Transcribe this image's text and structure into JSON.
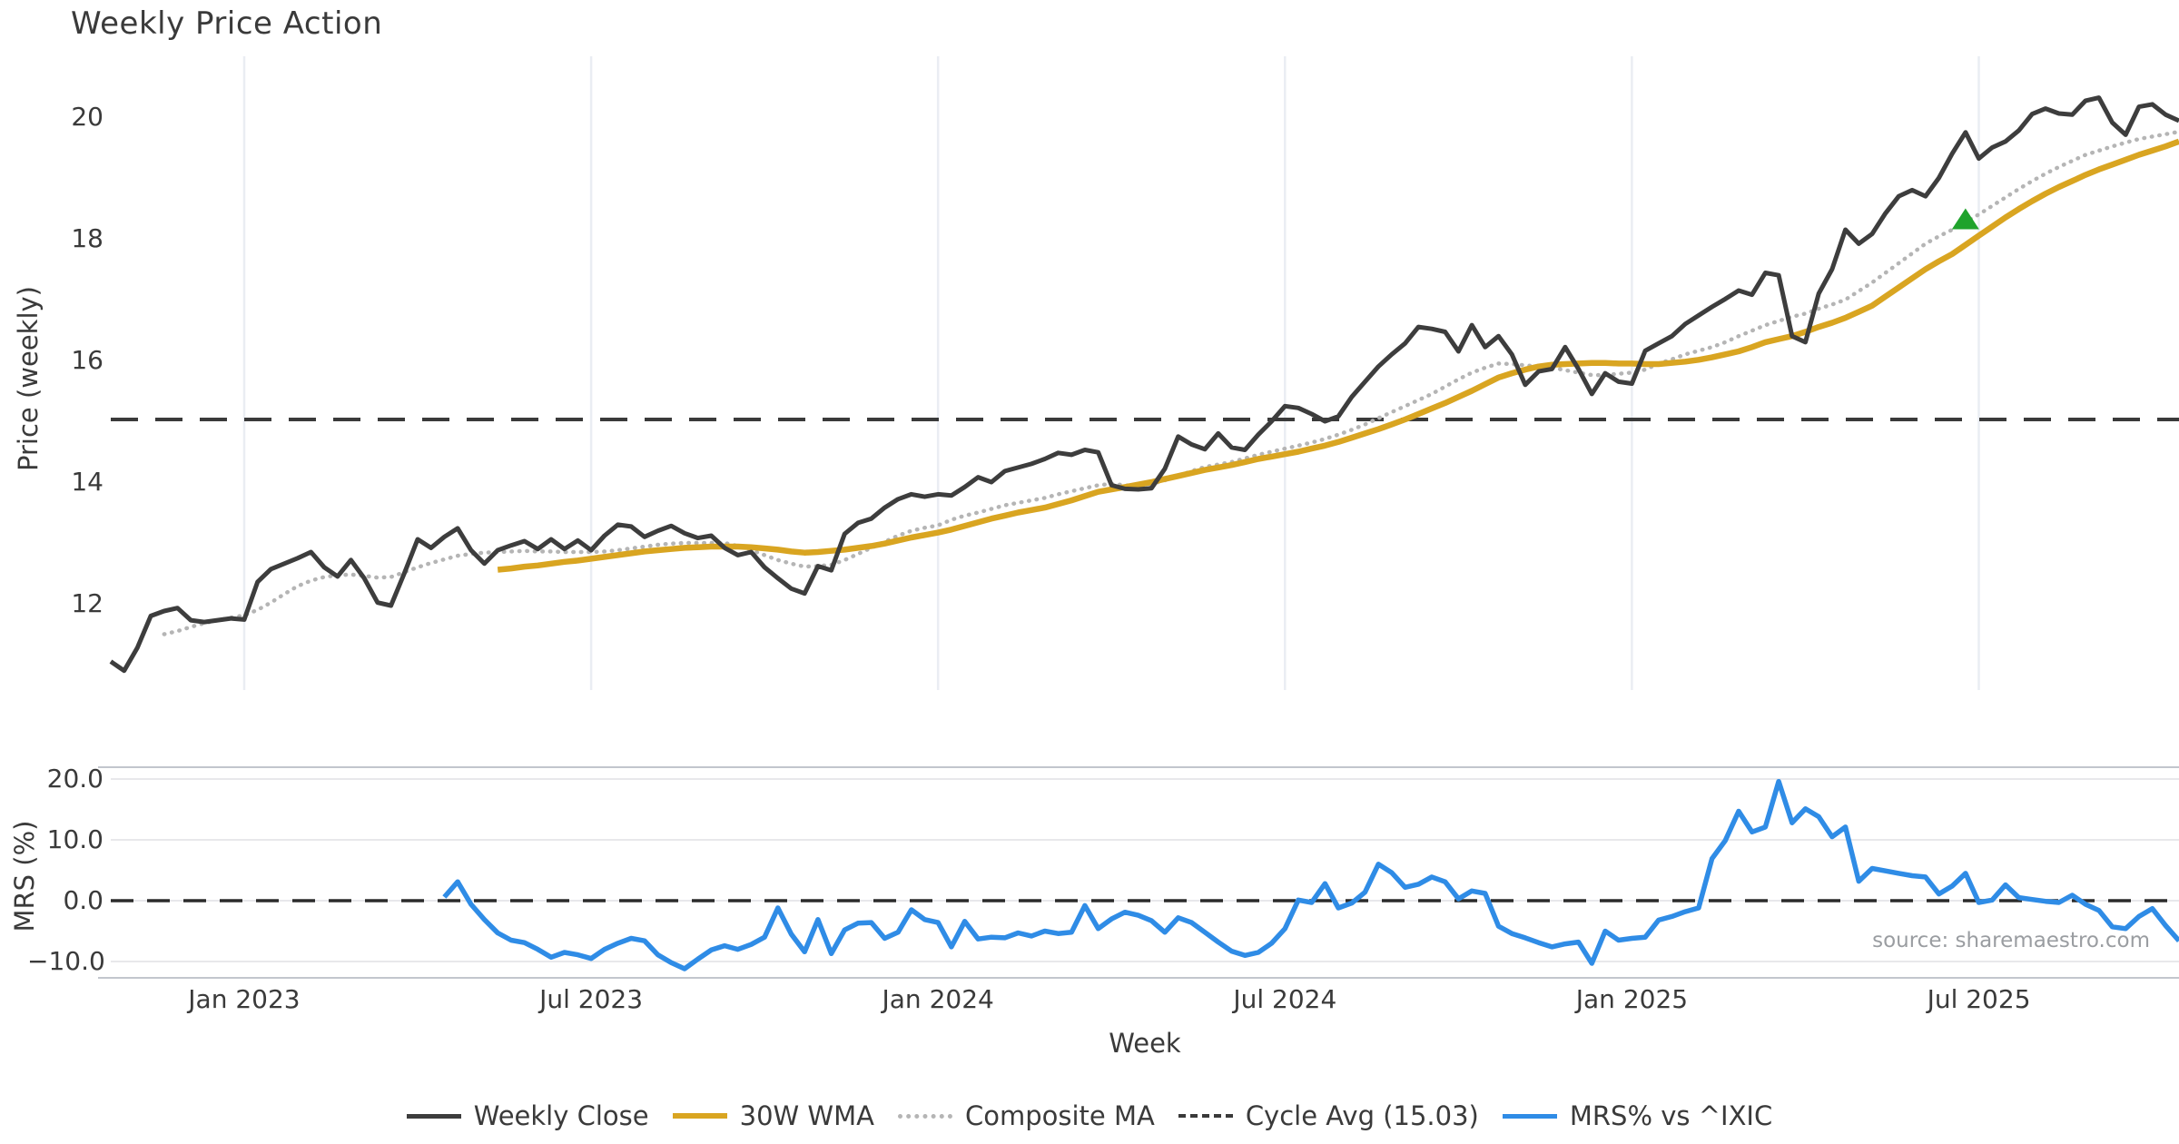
{
  "title": "Weekly Price Action",
  "source_note": "source: sharemaestro.com",
  "colors": {
    "weekly_close": "#3d3d3d",
    "wma_30w": "#d9a521",
    "composite_ma": "#b5b5b5",
    "cycle_avg": "#3a3a3a",
    "mrs_line": "#2f8ce6",
    "signal_marker": "#1fa32c",
    "vertical_grid": "#eaedf3",
    "horizontal_grid": "#e8e8eb",
    "spine": "#c2c6cd",
    "text": "#3a3a3a",
    "source_text": "#9a9da1"
  },
  "legend": {
    "items": [
      {
        "label": "Weekly Close",
        "color": "#3d3d3d",
        "style": "solid"
      },
      {
        "label": "30W WMA",
        "color": "#d9a521",
        "style": "solid"
      },
      {
        "label": "Composite MA",
        "color": "#b5b5b5",
        "style": "dotted"
      },
      {
        "label": "Cycle Avg (15.03)",
        "color": "#3a3a3a",
        "style": "dashed"
      },
      {
        "label": "MRS% vs ^IXIC",
        "color": "#2f8ce6",
        "style": "solid"
      }
    ]
  },
  "chart_data": [
    {
      "type": "line",
      "title": "Weekly Price Action",
      "ylabel": "Price (weekly)",
      "xlabel": "",
      "grid": "vertical-only",
      "ylim": [
        10.5,
        21.1
      ],
      "yticks": [
        20,
        18,
        16,
        14,
        12
      ],
      "n_points": 156,
      "x_ticks": [
        {
          "index": 10,
          "label": "Jan 2023"
        },
        {
          "index": 36,
          "label": "Jul 2023"
        },
        {
          "index": 62,
          "label": "Jan 2024"
        },
        {
          "index": 88,
          "label": "Jul 2024"
        },
        {
          "index": 114,
          "label": "Jan 2025"
        },
        {
          "index": 140,
          "label": "Jul 2025"
        }
      ],
      "cycle_avg": 15.03,
      "signal_marker": {
        "shape": "triangle-up",
        "color": "#1fa32c",
        "index": 139,
        "value": 18.32
      },
      "series": [
        {
          "name": "Weekly Close",
          "color": "#3d3d3d",
          "style": "solid",
          "width": 5,
          "values": [
            11.05,
            10.9,
            11.28,
            11.8,
            11.88,
            11.93,
            11.73,
            11.7,
            11.73,
            11.76,
            11.74,
            12.36,
            12.57,
            12.66,
            12.75,
            12.85,
            12.6,
            12.45,
            12.72,
            12.42,
            12.02,
            11.97,
            12.5,
            13.06,
            12.92,
            13.1,
            13.24,
            12.88,
            12.66,
            12.88,
            12.96,
            13.03,
            12.9,
            13.06,
            12.9,
            13.04,
            12.88,
            13.12,
            13.3,
            13.27,
            13.1,
            13.2,
            13.28,
            13.16,
            13.08,
            13.12,
            12.92,
            12.8,
            12.85,
            12.6,
            12.42,
            12.25,
            12.17,
            12.62,
            12.55,
            13.15,
            13.33,
            13.4,
            13.58,
            13.72,
            13.8,
            13.76,
            13.8,
            13.78,
            13.92,
            14.08,
            14.0,
            14.18,
            14.24,
            14.3,
            14.38,
            14.48,
            14.45,
            14.53,
            14.49,
            13.95,
            13.89,
            13.88,
            13.9,
            14.22,
            14.75,
            14.62,
            14.54,
            14.8,
            14.57,
            14.53,
            14.78,
            15.0,
            15.25,
            15.22,
            15.12,
            15.0,
            15.08,
            15.4,
            15.65,
            15.9,
            16.1,
            16.28,
            16.55,
            16.52,
            16.47,
            16.15,
            16.58,
            16.22,
            16.4,
            16.1,
            15.6,
            15.82,
            15.86,
            16.22,
            15.86,
            15.45,
            15.79,
            15.65,
            15.62,
            16.16,
            16.28,
            16.4,
            16.6,
            16.74,
            16.88,
            17.01,
            17.15,
            17.08,
            17.44,
            17.4,
            16.4,
            16.3,
            17.1,
            17.5,
            18.15,
            17.92,
            18.08,
            18.42,
            18.7,
            18.8,
            18.7,
            19.0,
            19.4,
            19.75,
            19.32,
            19.5,
            19.6,
            19.78,
            20.05,
            20.14,
            20.06,
            20.04,
            20.27,
            20.32,
            19.91,
            19.71,
            20.17,
            20.21,
            20.04,
            19.94
          ]
        },
        {
          "name": "30W WMA",
          "color": "#d9a521",
          "style": "solid",
          "width": 6.5,
          "values": [
            null,
            null,
            null,
            null,
            null,
            null,
            null,
            null,
            null,
            null,
            null,
            null,
            null,
            null,
            null,
            null,
            null,
            null,
            null,
            null,
            null,
            null,
            null,
            null,
            null,
            null,
            null,
            null,
            null,
            12.56,
            12.58,
            12.61,
            12.63,
            12.66,
            12.69,
            12.71,
            12.74,
            12.77,
            12.8,
            12.83,
            12.86,
            12.88,
            12.9,
            12.92,
            12.93,
            12.94,
            12.94,
            12.94,
            12.93,
            12.91,
            12.89,
            12.86,
            12.84,
            12.85,
            12.87,
            12.89,
            12.92,
            12.95,
            12.99,
            13.04,
            13.09,
            13.13,
            13.17,
            13.22,
            13.28,
            13.34,
            13.4,
            13.45,
            13.5,
            13.54,
            13.58,
            13.64,
            13.7,
            13.77,
            13.84,
            13.88,
            13.92,
            13.96,
            14.0,
            14.05,
            14.1,
            14.15,
            14.2,
            14.24,
            14.28,
            14.33,
            14.38,
            14.42,
            14.46,
            14.5,
            14.55,
            14.6,
            14.66,
            14.73,
            14.8,
            14.87,
            14.95,
            15.03,
            15.12,
            15.21,
            15.3,
            15.4,
            15.5,
            15.61,
            15.72,
            15.79,
            15.85,
            15.9,
            15.93,
            15.94,
            15.95,
            15.96,
            15.96,
            15.95,
            15.95,
            15.94,
            15.94,
            15.96,
            15.98,
            16.01,
            16.05,
            16.1,
            16.15,
            16.22,
            16.3,
            16.35,
            16.4,
            16.47,
            16.55,
            16.62,
            16.7,
            16.8,
            16.9,
            17.05,
            17.2,
            17.35,
            17.5,
            17.63,
            17.75,
            17.9,
            18.05,
            18.2,
            18.35,
            18.49,
            18.62,
            18.74,
            18.85,
            18.95,
            19.05,
            19.14,
            19.22,
            19.3,
            19.38,
            19.45,
            19.52,
            19.6
          ]
        },
        {
          "name": "Composite MA",
          "color": "#b5b5b5",
          "style": "dotted",
          "width": 4.5,
          "values": [
            null,
            null,
            null,
            null,
            11.5,
            11.55,
            11.62,
            11.68,
            11.73,
            11.77,
            11.81,
            11.9,
            12.02,
            12.16,
            12.29,
            12.38,
            12.44,
            12.47,
            12.48,
            12.46,
            12.43,
            12.44,
            12.52,
            12.6,
            12.67,
            12.73,
            12.79,
            12.82,
            12.84,
            12.85,
            12.86,
            12.87,
            12.86,
            12.86,
            12.85,
            12.85,
            12.85,
            12.86,
            12.88,
            12.91,
            12.94,
            12.97,
            12.99,
            13.0,
            13.0,
            13.0,
            13.0,
            12.95,
            12.88,
            12.8,
            12.72,
            12.66,
            12.61,
            12.62,
            12.64,
            12.72,
            12.82,
            12.92,
            13.02,
            13.12,
            13.2,
            13.25,
            13.29,
            13.38,
            13.45,
            13.5,
            13.56,
            13.62,
            13.66,
            13.7,
            13.74,
            13.8,
            13.85,
            13.9,
            13.95,
            13.97,
            13.95,
            13.93,
            13.97,
            14.03,
            14.1,
            14.18,
            14.25,
            14.29,
            14.33,
            14.39,
            14.45,
            14.5,
            14.55,
            14.6,
            14.65,
            14.71,
            14.78,
            14.86,
            14.95,
            15.05,
            15.15,
            15.25,
            15.35,
            15.45,
            15.57,
            15.69,
            15.8,
            15.88,
            15.95,
            15.94,
            15.92,
            15.9,
            15.88,
            15.84,
            15.8,
            15.76,
            15.76,
            15.78,
            15.8,
            15.85,
            15.95,
            16.02,
            16.1,
            16.16,
            16.22,
            16.3,
            16.4,
            16.49,
            16.58,
            16.65,
            16.72,
            16.77,
            16.85,
            16.92,
            17.0,
            17.14,
            17.28,
            17.44,
            17.6,
            17.76,
            17.92,
            18.04,
            18.15,
            18.28,
            18.4,
            18.54,
            18.68,
            18.82,
            18.95,
            19.07,
            19.18,
            19.28,
            19.38,
            19.45,
            19.52,
            19.58,
            19.64,
            19.68,
            19.72,
            19.76
          ]
        }
      ]
    },
    {
      "type": "line",
      "title": "",
      "ylabel": "MRS (%)",
      "xlabel": "Week",
      "grid": "horizontal-only",
      "ylim": [
        -13,
        22
      ],
      "yticks": [
        20,
        10,
        0,
        -10
      ],
      "ytick_labels": [
        "20.0",
        "10.0",
        "0.0",
        "−10.0"
      ],
      "zero_line": 0,
      "series": [
        {
          "name": "MRS% vs ^IXIC",
          "color": "#2f8ce6",
          "style": "solid",
          "width": 5.5,
          "values": [
            null,
            null,
            null,
            null,
            null,
            null,
            null,
            null,
            null,
            null,
            null,
            null,
            null,
            null,
            null,
            null,
            null,
            null,
            null,
            null,
            null,
            null,
            null,
            null,
            null,
            0.6,
            3.1,
            -0.6,
            -3.1,
            -5.3,
            -6.5,
            -6.9,
            -8.0,
            -9.3,
            -8.5,
            -8.9,
            -9.5,
            -8.0,
            -7.0,
            -6.2,
            -6.6,
            -8.9,
            -10.2,
            -11.2,
            -9.6,
            -8.1,
            -7.4,
            -8.0,
            -7.2,
            -6.0,
            -1.2,
            -5.5,
            -8.4,
            -3.1,
            -8.7,
            -4.8,
            -3.7,
            -3.6,
            -6.2,
            -5.2,
            -1.5,
            -3.1,
            -3.6,
            -7.6,
            -3.4,
            -6.3,
            -6.0,
            -6.1,
            -5.3,
            -5.8,
            -5.0,
            -5.4,
            -5.2,
            -0.8,
            -4.6,
            -3.0,
            -1.9,
            -2.4,
            -3.3,
            -5.2,
            -2.8,
            -3.6,
            -5.2,
            -6.8,
            -8.3,
            -9.0,
            -8.5,
            -7.0,
            -4.6,
            0.1,
            -0.3,
            2.8,
            -1.2,
            -0.4,
            1.4,
            6.0,
            4.6,
            2.2,
            2.7,
            3.9,
            3.1,
            0.3,
            1.6,
            1.2,
            -4.2,
            -5.4,
            -6.1,
            -6.9,
            -7.6,
            -7.1,
            -6.8,
            -10.3,
            -5.0,
            -6.5,
            -6.2,
            -6.0,
            -3.2,
            -2.6,
            -1.8,
            -1.2,
            6.9,
            9.9,
            14.7,
            11.3,
            12.1,
            19.6,
            12.8,
            15.1,
            13.8,
            10.5,
            12.1,
            3.2,
            5.3,
            4.9,
            4.5,
            4.1,
            3.9,
            1.1,
            2.4,
            4.5,
            -0.3,
            0.1,
            2.6,
            0.5,
            0.2,
            -0.1,
            -0.3,
            0.9,
            -0.6,
            -1.6,
            -4.3,
            -4.6,
            -2.6,
            -1.3,
            -4.1,
            -6.6
          ]
        }
      ]
    }
  ]
}
